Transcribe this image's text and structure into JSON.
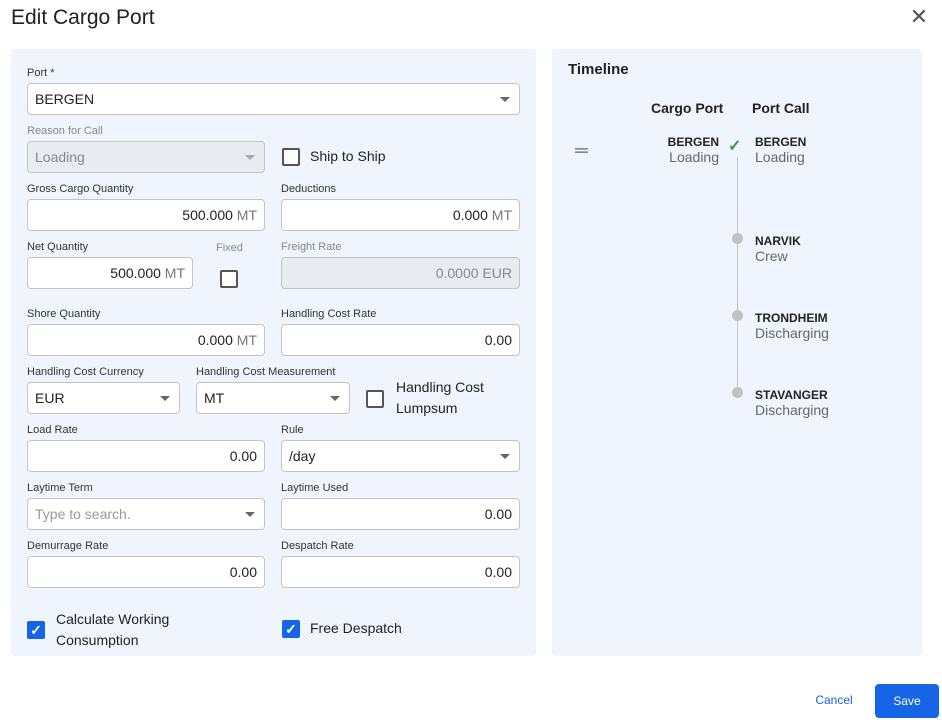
{
  "dialog": {
    "title": "Edit Cargo Port",
    "close_icon": "close-icon"
  },
  "form": {
    "port": {
      "label": "Port *",
      "value": "BERGEN"
    },
    "reason": {
      "label": "Reason for Call",
      "value": "Loading"
    },
    "ship_to_ship": {
      "label": "Ship to Ship",
      "checked": false
    },
    "gross": {
      "label": "Gross Cargo Quantity",
      "value": "500.000",
      "unit": "MT"
    },
    "deductions": {
      "label": "Deductions",
      "value": "0.000",
      "unit": "MT"
    },
    "net": {
      "label": "Net Quantity",
      "value": "500.000",
      "unit": "MT"
    },
    "fixed": {
      "label": "Fixed",
      "checked": false
    },
    "freight": {
      "label": "Freight Rate",
      "value": "0.0000 EUR"
    },
    "shore": {
      "label": "Shore Quantity",
      "value": "0.000",
      "unit": "MT"
    },
    "hcr": {
      "label": "Handling Cost Rate",
      "value": "0.00"
    },
    "hcc": {
      "label": "Handling Cost Currency",
      "value": "EUR"
    },
    "hcm": {
      "label": "Handling Cost Measurement",
      "value": "MT"
    },
    "lumpsum": {
      "label1": "Handling Cost",
      "label2": "Lumpsum",
      "checked": false
    },
    "load_rate": {
      "label": "Load Rate",
      "value": "0.00"
    },
    "rule": {
      "label": "Rule",
      "value": "/day"
    },
    "laytime_term": {
      "label": "Laytime Term",
      "placeholder": "Type to search."
    },
    "laytime_used": {
      "label": "Laytime Used",
      "value": "0.00"
    },
    "demurrage": {
      "label": "Demurrage Rate",
      "value": "0.00"
    },
    "despatch": {
      "label": "Despatch Rate",
      "value": "0.00"
    },
    "calc_working": {
      "label1": "Calculate Working",
      "label2": "Consumption",
      "checked": true
    },
    "free_despatch": {
      "label": "Free Despatch",
      "checked": true
    }
  },
  "timeline": {
    "title": "Timeline",
    "col_cargo": "Cargo Port",
    "col_call": "Port Call",
    "cargo": [
      {
        "name": "BERGEN",
        "reason": "Loading"
      }
    ],
    "calls": [
      {
        "name": "BERGEN",
        "reason": "Loading",
        "status": "done"
      },
      {
        "name": "NARVIK",
        "reason": "Crew"
      },
      {
        "name": "TRONDHEIM",
        "reason": "Discharging"
      },
      {
        "name": "STAVANGER",
        "reason": "Discharging"
      }
    ],
    "check_color": "#2e9e4f"
  },
  "footer": {
    "cancel": "Cancel",
    "save": "Save"
  },
  "colors": {
    "primary": "#1565e6",
    "panel": "#f0f5fd"
  }
}
